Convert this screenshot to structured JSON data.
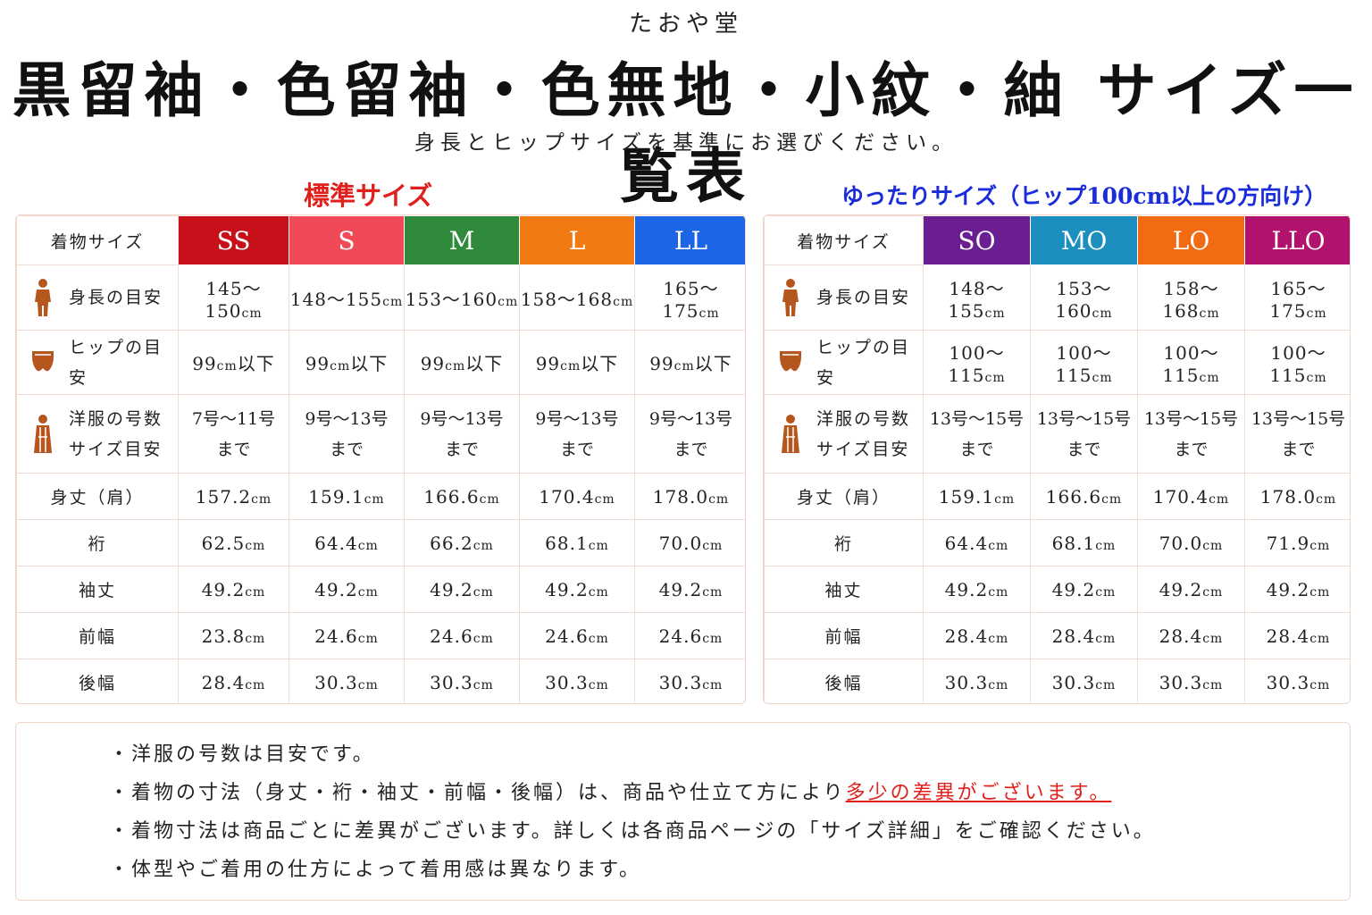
{
  "shop_name": "たおや堂",
  "title": "黒留袖・色留袖・色無地・小紋・紬 サイズ一覧表",
  "subtitle": "身長とヒップサイズを基準にお選びください。",
  "colors": {
    "accent_red": "#e0201c",
    "accent_blue": "#1a2dd8",
    "icon_brown": "#b5561e"
  },
  "standard": {
    "heading": "標準サイズ",
    "corner_label": "着物サイズ",
    "sizes": [
      {
        "label": "SS",
        "color": "#c8101a"
      },
      {
        "label": "S",
        "color": "#ef4a55"
      },
      {
        "label": "M",
        "color": "#2f8a3b"
      },
      {
        "label": "L",
        "color": "#f27a12"
      },
      {
        "label": "LL",
        "color": "#1c66e6"
      }
    ],
    "height_label": "身長の目安",
    "height": [
      "145〜150",
      "148〜155",
      "153〜160",
      "158〜168",
      "165〜175"
    ],
    "hip_label": "ヒップの目安",
    "hip": [
      {
        "num": "99",
        "unit": "cm",
        "suffix": "以下"
      },
      {
        "num": "99",
        "unit": "cm",
        "suffix": "以下"
      },
      {
        "num": "99",
        "unit": "cm",
        "suffix": "以下"
      },
      {
        "num": "99",
        "unit": "cm",
        "suffix": "以下"
      },
      {
        "num": "99",
        "unit": "cm",
        "suffix": "以下"
      }
    ],
    "western_label_1": "洋服の号数",
    "western_label_2": "サイズ目安",
    "western": [
      "7号〜11号",
      "9号〜13号",
      "9号〜13号",
      "9号〜13号",
      "9号〜13号"
    ],
    "western_suffix": "まで",
    "measures": [
      {
        "label": "身丈（肩）",
        "values": [
          "157.2",
          "159.1",
          "166.6",
          "170.4",
          "178.0"
        ]
      },
      {
        "label": "裄",
        "values": [
          "62.5",
          "64.4",
          "66.2",
          "68.1",
          "70.0"
        ]
      },
      {
        "label": "袖丈",
        "values": [
          "49.2",
          "49.2",
          "49.2",
          "49.2",
          "49.2"
        ]
      },
      {
        "label": "前幅",
        "values": [
          "23.8",
          "24.6",
          "24.6",
          "24.6",
          "24.6"
        ]
      },
      {
        "label": "後幅",
        "values": [
          "28.4",
          "30.3",
          "30.3",
          "30.3",
          "30.3"
        ]
      }
    ]
  },
  "relaxed": {
    "heading": "ゆったりサイズ（ヒップ100cm以上の方向け）",
    "corner_label": "着物サイズ",
    "sizes": [
      {
        "label": "SO",
        "color": "#6a1e92"
      },
      {
        "label": "MO",
        "color": "#1d8fbf"
      },
      {
        "label": "LO",
        "color": "#f26a12"
      },
      {
        "label": "LLO",
        "color": "#b0126e"
      }
    ],
    "height_label": "身長の目安",
    "height": [
      "148〜155",
      "153〜160",
      "158〜168",
      "165〜175"
    ],
    "hip_label": "ヒップの目安",
    "hip": [
      "100〜115",
      "100〜115",
      "100〜115",
      "100〜115"
    ],
    "western_label_1": "洋服の号数",
    "western_label_2": "サイズ目安",
    "western": [
      "13号〜15号",
      "13号〜15号",
      "13号〜15号",
      "13号〜15号"
    ],
    "western_suffix": "まで",
    "measures": [
      {
        "label": "身丈（肩）",
        "values": [
          "159.1",
          "166.6",
          "170.4",
          "178.0"
        ]
      },
      {
        "label": "裄",
        "values": [
          "64.4",
          "68.1",
          "70.0",
          "71.9"
        ]
      },
      {
        "label": "袖丈",
        "values": [
          "49.2",
          "49.2",
          "49.2",
          "49.2"
        ]
      },
      {
        "label": "前幅",
        "values": [
          "28.4",
          "28.4",
          "28.4",
          "28.4"
        ]
      },
      {
        "label": "後幅",
        "values": [
          "30.3",
          "30.3",
          "30.3",
          "30.3"
        ]
      }
    ]
  },
  "unit": "cm",
  "notes": [
    {
      "text": "・洋服の号数は目安です。",
      "emphasis": ""
    },
    {
      "text": "・着物の寸法（身丈・裄・袖丈・前幅・後幅）は、商品や仕立て方により",
      "emphasis": "多少の差異がございます。"
    },
    {
      "text": "・着物寸法は商品ごとに差異がございます。詳しくは各商品ページの「サイズ詳細」をご確認ください。",
      "emphasis": ""
    },
    {
      "text": "・体型やご着用の仕方によって着用感は異なります。",
      "emphasis": ""
    }
  ],
  "icons": {
    "height": "person-icon",
    "hip": "hip-icon",
    "western": "dress-icon"
  }
}
